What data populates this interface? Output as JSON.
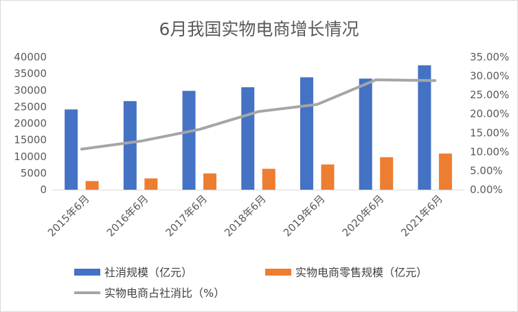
{
  "chart_data": {
    "type": "bar",
    "title": "6月我国实物电商增长情况",
    "categories": [
      "2015年6月",
      "2016年6月",
      "2017年6月",
      "2018年6月",
      "2019年6月",
      "2020年6月",
      "2021年6月"
    ],
    "series": [
      {
        "name": "社消规模（亿元）",
        "type": "bar",
        "axis": "left",
        "color": "#4472C4",
        "values": [
          24200,
          26700,
          29800,
          30900,
          33900,
          33500,
          37500
        ]
      },
      {
        "name": "实物电商零售规模（亿元）",
        "type": "bar",
        "axis": "left",
        "color": "#ED7D31",
        "values": [
          2600,
          3400,
          4900,
          6300,
          7600,
          9800,
          10900
        ]
      },
      {
        "name": "实物电商占社消比（%）",
        "type": "line",
        "axis": "right",
        "color": "#A5A5A5",
        "values": [
          10.7,
          12.8,
          15.9,
          20.6,
          22.5,
          29.0,
          28.8
        ]
      }
    ],
    "y_left": {
      "min": 0,
      "max": 40000,
      "step": 5000,
      "tick_labels": [
        "0",
        "5000",
        "10000",
        "15000",
        "20000",
        "25000",
        "30000",
        "35000",
        "40000"
      ]
    },
    "y_right": {
      "min": 0,
      "max": 35,
      "step": 5,
      "tick_labels": [
        "0.00%",
        "5.00%",
        "10.00%",
        "15.00%",
        "20.00%",
        "25.00%",
        "30.00%",
        "35.00%"
      ]
    },
    "grid": false,
    "legend_position": "bottom"
  }
}
